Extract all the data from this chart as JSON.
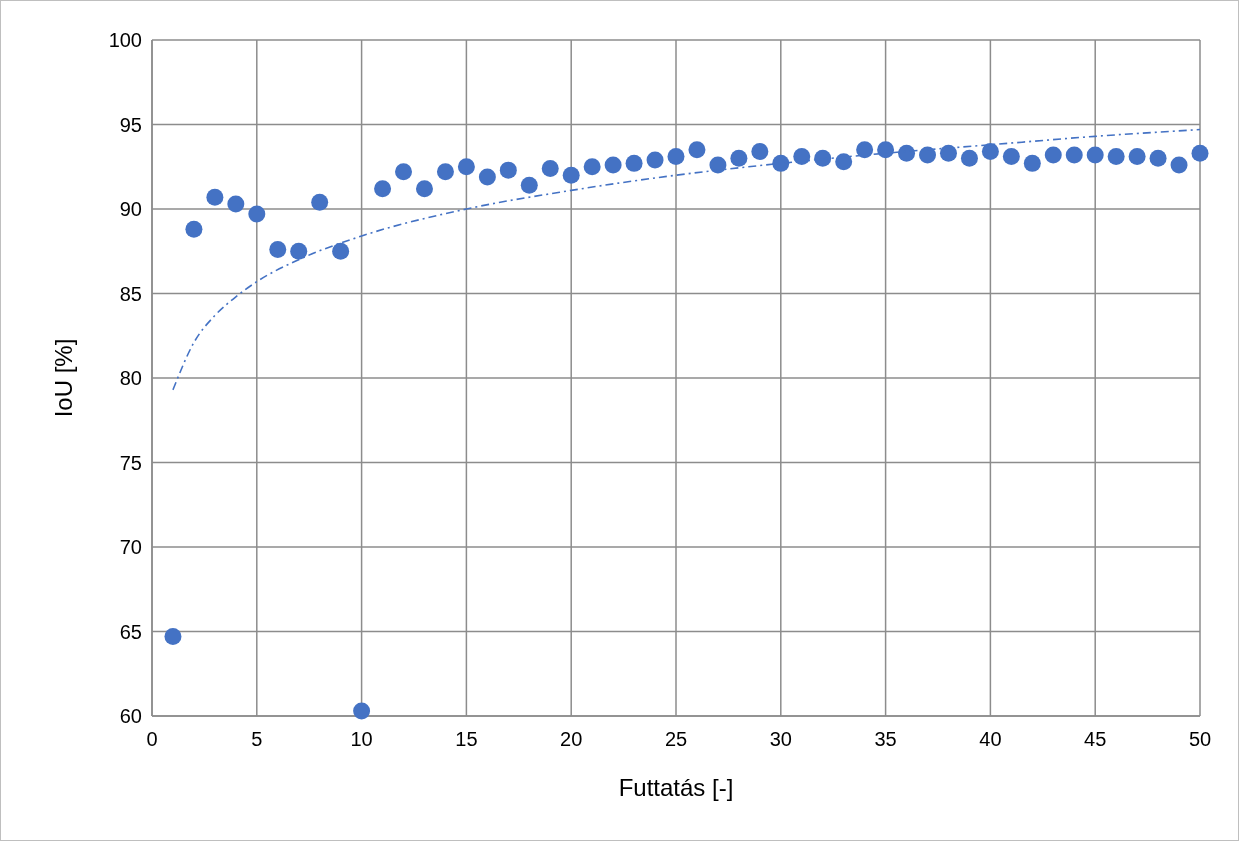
{
  "chart_data": {
    "type": "scatter",
    "xlabel": "Futtatás [-]",
    "ylabel": "IoU [%]",
    "xlim": [
      0,
      50
    ],
    "xticks": [
      0,
      5,
      10,
      15,
      20,
      25,
      30,
      35,
      40,
      45,
      50
    ],
    "ylim": [
      60,
      100
    ],
    "yticks": [
      60,
      65,
      70,
      75,
      80,
      85,
      90,
      95,
      100
    ],
    "grid": true,
    "series": [
      {
        "color": "#4472c4",
        "marker": "circle",
        "x": [
          1,
          2,
          3,
          4,
          5,
          6,
          7,
          8,
          9,
          10,
          11,
          12,
          13,
          14,
          15,
          16,
          17,
          18,
          19,
          20,
          21,
          22,
          23,
          24,
          25,
          26,
          27,
          28,
          29,
          30,
          31,
          32,
          33,
          34,
          35,
          36,
          37,
          38,
          39,
          40,
          41,
          42,
          43,
          44,
          45,
          46,
          47,
          48,
          49,
          50
        ],
        "values": [
          64.7,
          88.8,
          90.7,
          90.3,
          89.7,
          87.6,
          87.5,
          90.4,
          87.5,
          60.3,
          91.2,
          92.2,
          91.2,
          92.2,
          92.5,
          91.9,
          92.3,
          91.4,
          92.4,
          92.0,
          92.5,
          92.6,
          92.7,
          92.9,
          93.1,
          93.5,
          92.6,
          93.0,
          93.4,
          92.7,
          93.1,
          93.0,
          92.8,
          93.5,
          93.5,
          93.3,
          93.2,
          93.3,
          93.0,
          93.4,
          93.1,
          92.7,
          93.2,
          93.2,
          93.2,
          93.1,
          93.1,
          93.0,
          92.6,
          93.3
        ]
      },
      {
        "type": "line",
        "color": "#4472c4",
        "line_style": "dashed",
        "marker": "none",
        "x": [
          1,
          2,
          3,
          4,
          5,
          7,
          10,
          15,
          20,
          25,
          30,
          35,
          40,
          45,
          50
        ],
        "values": [
          79.3,
          82.1,
          83.7,
          84.8,
          85.7,
          87.0,
          88.4,
          90.0,
          91.1,
          92.0,
          92.7,
          93.3,
          93.8,
          94.3,
          94.7
        ]
      }
    ]
  }
}
